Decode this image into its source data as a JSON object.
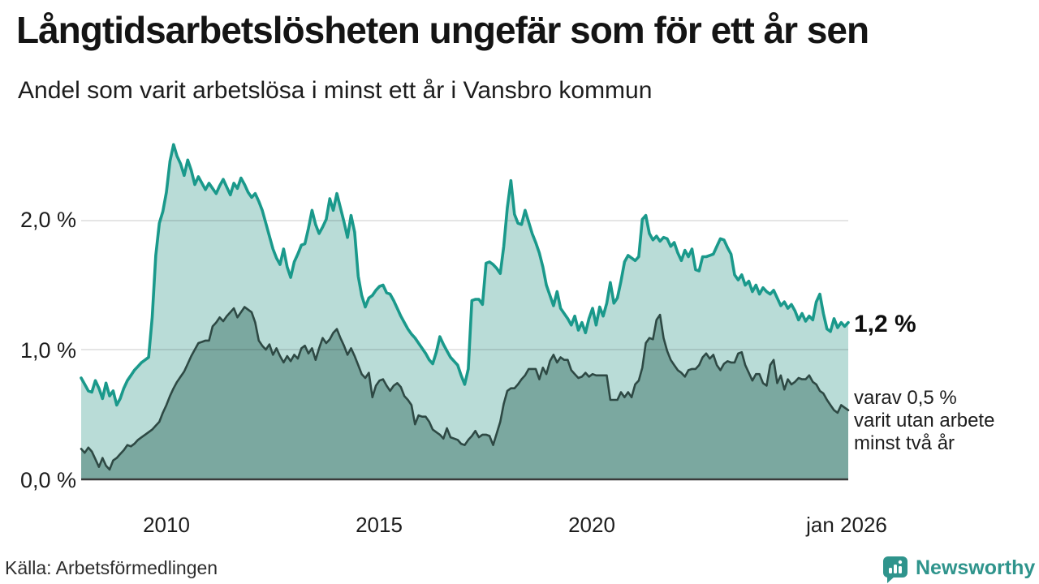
{
  "title": "Långtidsarbetslösheten ungefär som för ett år sen",
  "subtitle": "Andel som varit arbetslösa i minst ett år i Vansbro kommun",
  "source": "Källa: Arbetsförmedlingen",
  "branding": {
    "logo_text": "Newsworthy",
    "brand_color": "#2f948c",
    "logo_icon": "speech-bubble-bar-chart"
  },
  "chart_data": {
    "type": "area",
    "title": "Långtidsarbetslösheten ungefär som för ett år sen",
    "subtitle": "Andel som varit arbetslösa i minst ett år i Vansbro kommun",
    "x_start_year": 2008.0,
    "x_end_year": 2026.0,
    "x_step": "monthly",
    "ylim": [
      0,
      2.75
    ],
    "grid": "horizontal",
    "y_ticks": [
      {
        "label": "2,0 %",
        "value": 2.0
      },
      {
        "label": "1,0 %",
        "value": 1.0
      },
      {
        "label": "0,0 %",
        "value": 0.0
      }
    ],
    "x_ticks": [
      {
        "label": "2010",
        "year": 2010
      },
      {
        "label": "2015",
        "year": 2015
      },
      {
        "label": "2020",
        "year": 2020
      },
      {
        "label": "jan 2026",
        "year": 2026
      }
    ],
    "annotations": {
      "last_value": "1,2 %",
      "note_lines": [
        "varav 0,5 %",
        "varit utan arbete",
        "minst två år"
      ]
    },
    "colors": {
      "series1_line": "#1a998b",
      "series1_fill": "#b9dcd7",
      "series2_line": "#2e4944",
      "series2_fill": "#7ba8a0",
      "gridline": "rgba(0,0,0,0.10)",
      "baseline": "#3a3a3a"
    },
    "series": [
      {
        "name": "Arbetslösa minst ett år",
        "values": [
          0.78,
          0.73,
          0.68,
          0.67,
          0.76,
          0.7,
          0.62,
          0.74,
          0.64,
          0.68,
          0.57,
          0.62,
          0.7,
          0.76,
          0.8,
          0.84,
          0.87,
          0.9,
          0.92,
          0.94,
          1.25,
          1.73,
          1.98,
          2.07,
          2.22,
          2.46,
          2.59,
          2.5,
          2.44,
          2.35,
          2.47,
          2.39,
          2.28,
          2.34,
          2.29,
          2.24,
          2.29,
          2.25,
          2.21,
          2.27,
          2.32,
          2.26,
          2.2,
          2.29,
          2.25,
          2.33,
          2.28,
          2.22,
          2.18,
          2.21,
          2.15,
          2.08,
          1.98,
          1.88,
          1.78,
          1.71,
          1.66,
          1.78,
          1.64,
          1.56,
          1.68,
          1.74,
          1.81,
          1.82,
          1.94,
          2.08,
          1.97,
          1.9,
          1.95,
          2.01,
          2.17,
          2.08,
          2.21,
          2.1,
          1.99,
          1.87,
          2.04,
          1.91,
          1.57,
          1.42,
          1.33,
          1.4,
          1.42,
          1.46,
          1.49,
          1.5,
          1.44,
          1.43,
          1.38,
          1.32,
          1.26,
          1.21,
          1.16,
          1.12,
          1.09,
          1.05,
          1.01,
          0.97,
          0.92,
          0.89,
          0.98,
          1.1,
          1.04,
          0.99,
          0.94,
          0.91,
          0.88,
          0.8,
          0.73,
          0.85,
          1.38,
          1.39,
          1.39,
          1.35,
          1.67,
          1.68,
          1.66,
          1.63,
          1.59,
          1.8,
          2.1,
          2.31,
          2.05,
          1.98,
          1.97,
          2.08,
          1.99,
          1.9,
          1.83,
          1.75,
          1.64,
          1.5,
          1.42,
          1.34,
          1.45,
          1.32,
          1.28,
          1.24,
          1.19,
          1.26,
          1.15,
          1.21,
          1.13,
          1.24,
          1.32,
          1.19,
          1.33,
          1.26,
          1.36,
          1.52,
          1.36,
          1.4,
          1.53,
          1.68,
          1.73,
          1.71,
          1.69,
          1.72,
          2.01,
          2.04,
          1.9,
          1.85,
          1.88,
          1.84,
          1.87,
          1.86,
          1.8,
          1.83,
          1.75,
          1.69,
          1.77,
          1.72,
          1.78,
          1.62,
          1.61,
          1.72,
          1.72,
          1.73,
          1.74,
          1.8,
          1.86,
          1.85,
          1.79,
          1.74,
          1.58,
          1.54,
          1.58,
          1.5,
          1.53,
          1.45,
          1.5,
          1.43,
          1.48,
          1.45,
          1.43,
          1.46,
          1.4,
          1.34,
          1.37,
          1.32,
          1.35,
          1.3,
          1.23,
          1.28,
          1.22,
          1.26,
          1.23,
          1.37,
          1.43,
          1.28,
          1.16,
          1.14,
          1.24,
          1.17,
          1.21,
          1.18,
          1.21
        ]
      },
      {
        "name": "Utan arbete minst två år",
        "values": [
          0.23,
          0.2,
          0.24,
          0.21,
          0.15,
          0.09,
          0.16,
          0.1,
          0.07,
          0.14,
          0.16,
          0.19,
          0.22,
          0.26,
          0.25,
          0.27,
          0.3,
          0.32,
          0.34,
          0.36,
          0.38,
          0.41,
          0.44,
          0.51,
          0.57,
          0.64,
          0.7,
          0.75,
          0.79,
          0.83,
          0.89,
          0.95,
          1.0,
          1.05,
          1.06,
          1.07,
          1.07,
          1.18,
          1.21,
          1.25,
          1.22,
          1.26,
          1.29,
          1.32,
          1.25,
          1.29,
          1.33,
          1.31,
          1.29,
          1.21,
          1.07,
          1.03,
          1.0,
          1.04,
          0.96,
          1.01,
          0.95,
          0.9,
          0.95,
          0.91,
          0.96,
          0.93,
          1.01,
          1.03,
          0.97,
          1.01,
          0.92,
          1.01,
          1.09,
          1.05,
          1.08,
          1.13,
          1.16,
          1.09,
          1.03,
          0.96,
          1.01,
          0.95,
          0.88,
          0.81,
          0.78,
          0.82,
          0.63,
          0.72,
          0.76,
          0.77,
          0.72,
          0.68,
          0.72,
          0.74,
          0.71,
          0.64,
          0.61,
          0.57,
          0.42,
          0.49,
          0.48,
          0.48,
          0.44,
          0.38,
          0.36,
          0.34,
          0.31,
          0.39,
          0.32,
          0.31,
          0.3,
          0.27,
          0.26,
          0.3,
          0.33,
          0.37,
          0.32,
          0.34,
          0.34,
          0.33,
          0.26,
          0.35,
          0.44,
          0.58,
          0.68,
          0.7,
          0.7,
          0.73,
          0.77,
          0.8,
          0.85,
          0.85,
          0.85,
          0.77,
          0.86,
          0.81,
          0.91,
          0.96,
          0.9,
          0.94,
          0.92,
          0.92,
          0.84,
          0.81,
          0.78,
          0.79,
          0.82,
          0.79,
          0.81,
          0.8,
          0.8,
          0.8,
          0.8,
          0.61,
          0.61,
          0.61,
          0.67,
          0.63,
          0.67,
          0.63,
          0.73,
          0.76,
          0.86,
          1.05,
          1.09,
          1.08,
          1.23,
          1.27,
          1.09,
          0.99,
          0.92,
          0.88,
          0.84,
          0.82,
          0.79,
          0.84,
          0.85,
          0.85,
          0.88,
          0.94,
          0.97,
          0.93,
          0.96,
          0.88,
          0.84,
          0.89,
          0.91,
          0.9,
          0.9,
          0.97,
          0.98,
          0.88,
          0.82,
          0.76,
          0.81,
          0.81,
          0.74,
          0.72,
          0.88,
          0.92,
          0.74,
          0.8,
          0.69,
          0.77,
          0.73,
          0.75,
          0.78,
          0.77,
          0.77,
          0.8,
          0.75,
          0.73,
          0.68,
          0.66,
          0.61,
          0.57,
          0.53,
          0.51,
          0.57,
          0.55,
          0.53
        ]
      }
    ]
  }
}
